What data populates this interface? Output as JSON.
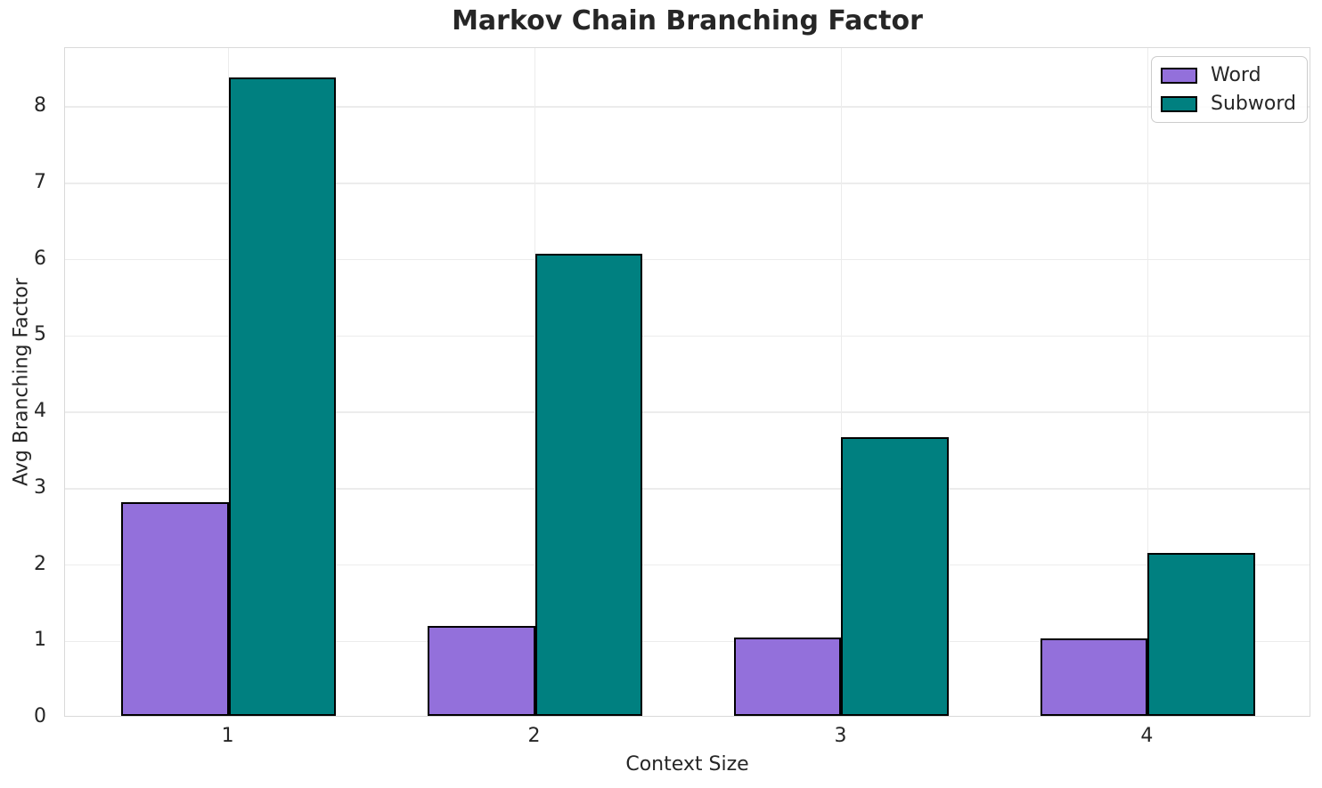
{
  "figure": {
    "title": "Markov Chain Branching Factor",
    "xlabel": "Context Size",
    "ylabel": "Avg Branching Factor"
  },
  "chart_data": {
    "type": "bar",
    "title": "Markov Chain Branching Factor",
    "xlabel": "Context Size",
    "ylabel": "Avg Branching Factor",
    "categories": [
      "1",
      "2",
      "3",
      "4"
    ],
    "series": [
      {
        "name": "Word",
        "color": "#9370DB",
        "values": [
          2.8,
          1.18,
          1.03,
          1.01
        ]
      },
      {
        "name": "Subword",
        "color": "#008080",
        "values": [
          8.36,
          6.05,
          3.65,
          2.13
        ]
      }
    ],
    "ylim": [
      0,
      8.77
    ],
    "yticks": [
      0,
      1,
      2,
      3,
      4,
      5,
      6,
      7,
      8
    ],
    "grid": true,
    "legend_position": "upper right",
    "bar_edge_color": "#000000",
    "grid_color": "#ececec",
    "spine_color": "#d9d9d9",
    "text_color": "#262626",
    "background_color": "#ffffff"
  }
}
